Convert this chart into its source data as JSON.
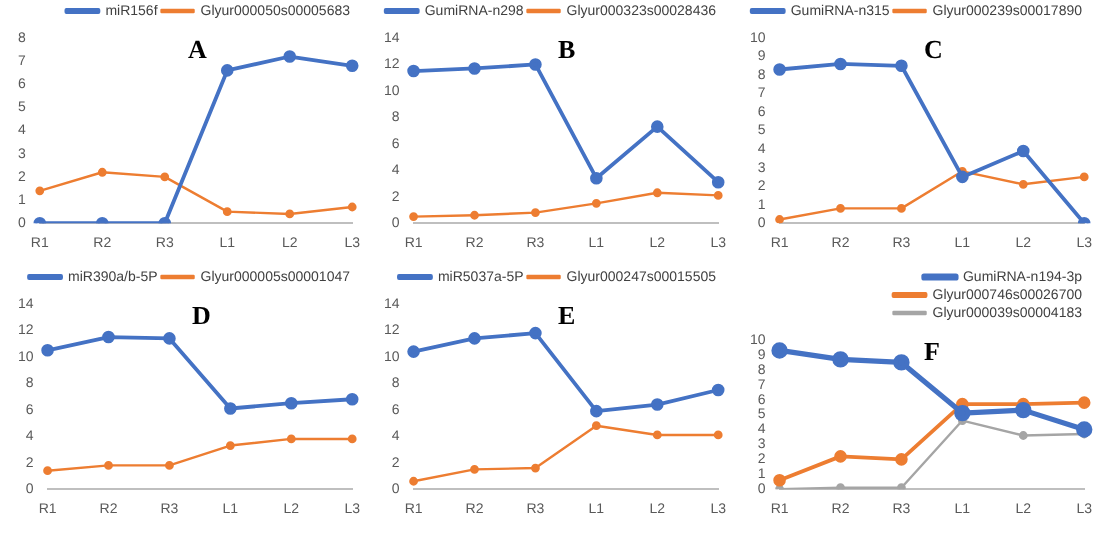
{
  "chart_data": [
    {
      "type": "line",
      "annotations": [
        "A"
      ],
      "categories": [
        "R1",
        "R2",
        "R3",
        "L1",
        "L2",
        "L3"
      ],
      "series": [
        {
          "name": "miR156f",
          "color": "#4472c4",
          "values": [
            0,
            0,
            0,
            6.6,
            7.2,
            6.8
          ]
        },
        {
          "name": "Glyur000050s00005683",
          "color": "#ed7d31",
          "values": [
            1.4,
            2.2,
            2,
            0.5,
            0.4,
            0.7
          ]
        }
      ],
      "ylim": [
        0,
        8
      ],
      "yticks": [
        0,
        1,
        2,
        3,
        4,
        5,
        6,
        7,
        8
      ],
      "legend": "top right",
      "marker": "circle",
      "grid": false
    },
    {
      "type": "line",
      "annotations": [
        "B"
      ],
      "categories": [
        "R1",
        "R2",
        "R3",
        "L1",
        "L2",
        "L3"
      ],
      "series": [
        {
          "name": "GumiRNA-n298",
          "color": "#4472c4",
          "values": [
            11.5,
            11.7,
            12,
            3.4,
            7.3,
            3.1
          ]
        },
        {
          "name": "Glyur000323s00028436",
          "color": "#ed7d31",
          "values": [
            0.5,
            0.6,
            0.8,
            1.5,
            2.3,
            2.1
          ]
        }
      ],
      "ylim": [
        0,
        14
      ],
      "yticks": [
        0,
        2,
        4,
        6,
        8,
        10,
        12,
        14
      ],
      "legend": "top right",
      "marker": "circle",
      "grid": false
    },
    {
      "type": "line",
      "annotations": [
        "C"
      ],
      "categories": [
        "R1",
        "R2",
        "R3",
        "L1",
        "L2",
        "L3"
      ],
      "series": [
        {
          "name": "GumiRNA-n315",
          "color": "#4472c4",
          "values": [
            8.3,
            8.6,
            8.5,
            2.5,
            3.9,
            0
          ]
        },
        {
          "name": "Glyur000239s00017890",
          "color": "#ed7d31",
          "values": [
            0.2,
            0.8,
            0.8,
            2.8,
            2.1,
            2.5
          ]
        }
      ],
      "ylim": [
        0,
        10
      ],
      "yticks": [
        0,
        1,
        2,
        3,
        4,
        5,
        6,
        7,
        8,
        9,
        10
      ],
      "legend": "top right",
      "marker": "circle",
      "grid": false
    },
    {
      "type": "line",
      "annotations": [
        "D"
      ],
      "categories": [
        "R1",
        "R2",
        "R3",
        "L1",
        "L2",
        "L3"
      ],
      "series": [
        {
          "name": "miR390a/b-5P",
          "color": "#4472c4",
          "values": [
            10.5,
            11.5,
            11.4,
            6.1,
            6.5,
            6.8
          ]
        },
        {
          "name": "Glyur000005s00001047",
          "color": "#ed7d31",
          "values": [
            1.4,
            1.8,
            1.8,
            3.3,
            3.8,
            3.8
          ]
        }
      ],
      "ylim": [
        0,
        14
      ],
      "yticks": [
        0,
        2,
        4,
        6,
        8,
        10,
        12,
        14
      ],
      "legend": "top right",
      "marker": "circle",
      "grid": false
    },
    {
      "type": "line",
      "annotations": [
        "E"
      ],
      "categories": [
        "R1",
        "R2",
        "R3",
        "L1",
        "L2",
        "L3"
      ],
      "series": [
        {
          "name": "miR5037a-5P",
          "color": "#4472c4",
          "values": [
            10.4,
            11.4,
            11.8,
            5.9,
            6.4,
            7.5
          ]
        },
        {
          "name": "Glyur000247s00015505",
          "color": "#ed7d31",
          "values": [
            0.6,
            1.5,
            1.6,
            4.8,
            4.1,
            4.1
          ]
        }
      ],
      "ylim": [
        0,
        14
      ],
      "yticks": [
        0,
        2,
        4,
        6,
        8,
        10,
        12,
        14
      ],
      "legend": "top right",
      "marker": "circle",
      "grid": false
    },
    {
      "type": "line",
      "annotations": [
        "F"
      ],
      "categories": [
        "R1",
        "R2",
        "R3",
        "L1",
        "L2",
        "L3"
      ],
      "series": [
        {
          "name": "GumiRNA-n194-3p",
          "color": "#4472c4",
          "values": [
            9.3,
            8.7,
            8.5,
            5.1,
            5.3,
            4.0
          ]
        },
        {
          "name": "Glyur000746s00026700",
          "color": "#ed7d31",
          "values": [
            0.6,
            2.2,
            2,
            5.7,
            5.7,
            5.8
          ]
        },
        {
          "name": "Glyur000039s00004183",
          "color": "#a5a5a5",
          "values": [
            0,
            0.1,
            0.1,
            4.6,
            3.6,
            3.7
          ]
        }
      ],
      "ylim": [
        0,
        10
      ],
      "yticks": [
        0,
        1,
        2,
        3,
        4,
        5,
        6,
        7,
        8,
        9,
        10
      ],
      "legend": "top right",
      "marker": "circle",
      "grid": false
    }
  ]
}
